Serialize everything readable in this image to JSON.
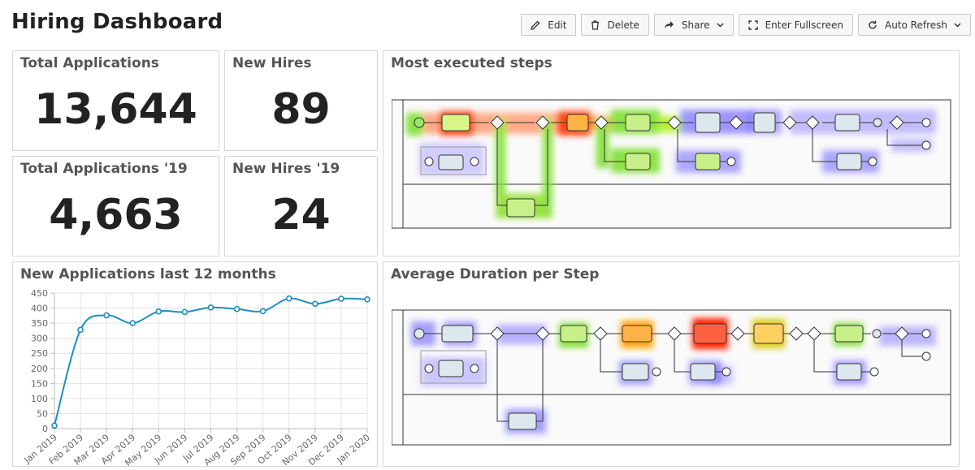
{
  "header": {
    "title": "Hiring Dashboard",
    "buttons": {
      "edit": "Edit",
      "delete": "Delete",
      "share": "Share",
      "fullscreen": "Enter Fullscreen",
      "auto_refresh": "Auto Refresh"
    }
  },
  "kpis": {
    "total_applications": {
      "title": "Total Applications",
      "value": "13,644"
    },
    "new_hires": {
      "title": "New Hires",
      "value": "89"
    },
    "total_applications_19": {
      "title": "Total Applications '19",
      "value": "4,663"
    },
    "new_hires_19": {
      "title": "New Hires '19",
      "value": "24"
    }
  },
  "heatmaps": {
    "most_executed": {
      "title": "Most executed steps"
    },
    "avg_duration": {
      "title": "Average Duration per Step"
    }
  },
  "chart_panel": {
    "title": "New Applications last 12 months"
  },
  "colors": {
    "line": "#1f8fc1",
    "border": "#d6d6d6",
    "title": "#555555"
  },
  "chart_data": {
    "type": "line",
    "title": "New Applications last 12 months",
    "categories": [
      "Jan 2019",
      "Feb 2019",
      "Mar 2019",
      "Apr 2019",
      "May 2019",
      "Jun 2019",
      "Jul 2019",
      "Aug 2019",
      "Sep 2019",
      "Oct 2019",
      "Nov 2019",
      "Dec 2019",
      "Jan 2020"
    ],
    "values": [
      10,
      328,
      376,
      350,
      389,
      387,
      402,
      397,
      390,
      432,
      414,
      431,
      429
    ],
    "ylim": [
      0,
      450
    ],
    "yticks": [
      0,
      50,
      100,
      150,
      200,
      250,
      300,
      350,
      400,
      450
    ],
    "grid": true,
    "xlabel": "",
    "ylabel": ""
  }
}
